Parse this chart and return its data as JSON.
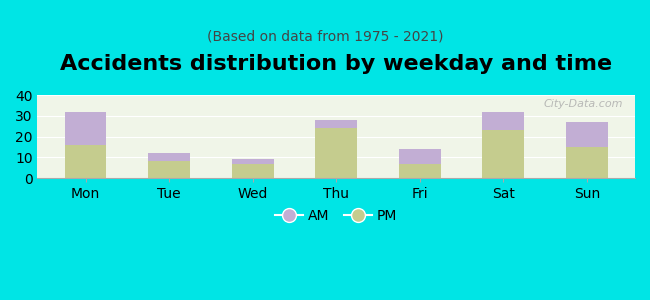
{
  "title": "Accidents distribution by weekday and time",
  "subtitle": "(Based on data from 1975 - 2021)",
  "categories": [
    "Mon",
    "Tue",
    "Wed",
    "Thu",
    "Fri",
    "Sat",
    "Sun"
  ],
  "pm_values": [
    16,
    8,
    7,
    24,
    7,
    23,
    15
  ],
  "am_values": [
    16,
    4,
    2,
    4,
    7,
    9,
    12
  ],
  "am_color": "#c2aed4",
  "pm_color": "#c5cc8e",
  "background_color": "#00e5e5",
  "plot_bg_color": "#f0f5e8",
  "ylim": [
    0,
    40
  ],
  "yticks": [
    0,
    10,
    20,
    30,
    40
  ],
  "bar_width": 0.5,
  "legend_labels": [
    "AM",
    "PM"
  ],
  "watermark": "City-Data.com",
  "title_fontsize": 16,
  "subtitle_fontsize": 10,
  "tick_fontsize": 10
}
